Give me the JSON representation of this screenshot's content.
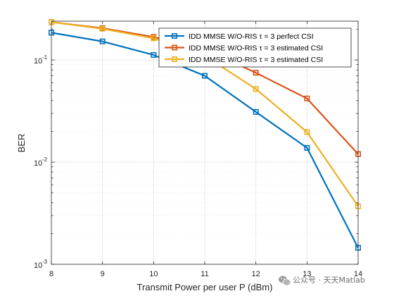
{
  "chart_data": {
    "type": "line",
    "xlabel": "Transmit Power per user P (dBm)",
    "ylabel": "BER",
    "x": [
      8,
      9,
      10,
      11,
      12,
      13,
      14
    ],
    "xlim": [
      8,
      14
    ],
    "ylim": [
      0.001,
      0.24
    ],
    "yscale": "log",
    "x_ticks": [
      "8",
      "9",
      "10",
      "11",
      "12",
      "13",
      "14"
    ],
    "y_ticks": [
      {
        "value": 0.001,
        "base": "10",
        "exp": "-3"
      },
      {
        "value": 0.01,
        "base": "10",
        "exp": "-2"
      },
      {
        "value": 0.1,
        "base": "10",
        "exp": "-1"
      }
    ],
    "grid": true,
    "legend_position": "top-right",
    "series": [
      {
        "name": "IDD MMSE W/O-RIS τ = 3 perfect CSI",
        "color": "#0072BD",
        "marker": "square",
        "values": [
          0.185,
          0.152,
          0.112,
          0.07,
          0.031,
          0.0138,
          0.00145
        ]
      },
      {
        "name": "IDD MMSE W/O-RIS τ = 3 estimated CSI",
        "color": "#D95319",
        "marker": "square",
        "values": [
          0.235,
          0.205,
          0.168,
          0.128,
          0.075,
          0.042,
          0.012
        ]
      },
      {
        "name": "IDD MMSE W/O-RIS τ = 3 estimated CSI",
        "color": "#EDB120",
        "marker": "square",
        "values": [
          0.235,
          0.202,
          0.163,
          0.11,
          0.052,
          0.0197,
          0.0037
        ]
      }
    ]
  },
  "watermark": {
    "text": "公众号 · 天天Matlab",
    "icon": "wechat-icon"
  }
}
